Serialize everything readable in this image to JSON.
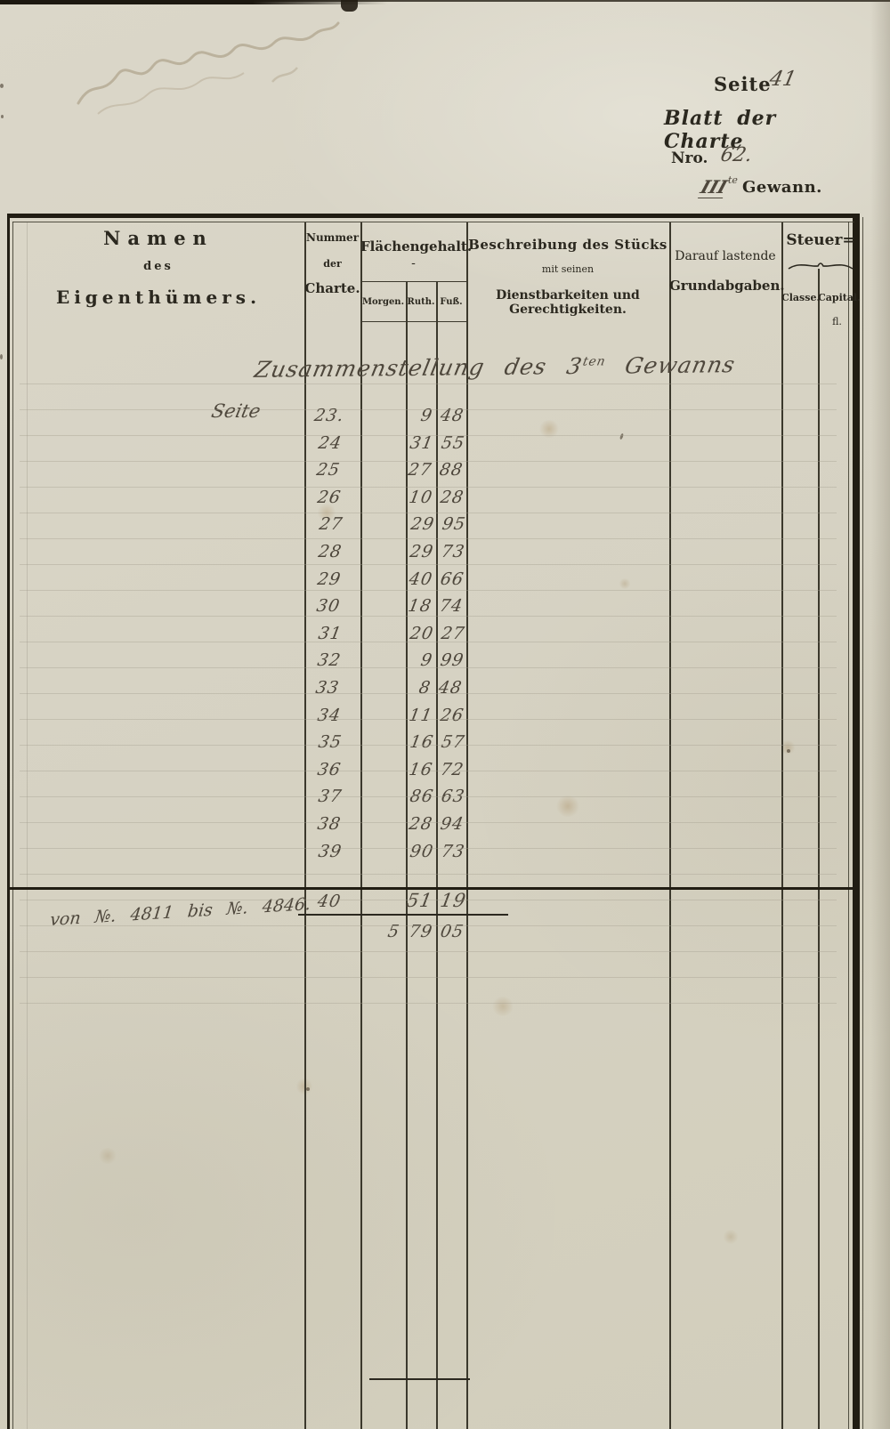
{
  "page_header": {
    "seite_label": "Seite",
    "seite_value": "41",
    "blatt_title": "Blatt der Charte",
    "nro_label": "Nro.",
    "nro_value": "62.",
    "gewann_value": "III",
    "gewann_sup": "te",
    "gewann_label": "Gewann."
  },
  "table_header": {
    "namen_line1": "Namen",
    "namen_line2": "des",
    "namen_line3": "Eigenthümers.",
    "nummer_line1": "Nummer",
    "nummer_line2": "der",
    "nummer_line3": "Charte.",
    "flaeche_title": "Flächengehalt.",
    "flaeche_dash": "-",
    "sub_morgen": "Morgen.",
    "sub_ruth": "Ruth.",
    "sub_fuss": "Fuß.",
    "beschr_line1": "Beschreibung des Stücks",
    "beschr_line2": "mit seinen",
    "beschr_line3": "Dienstbarkeiten und Gerechtigkeiten.",
    "darauf_line1": "Darauf lastende",
    "darauf_line2": "Grundabgaben.",
    "steuer_title": "Steuer=",
    "steuer_classe": "Classe.",
    "steuer_capital": "Capital.",
    "steuer_unit": "fl."
  },
  "entries": {
    "title_a": "Zusammenstellung des 3",
    "title_sup": "ten",
    "title_b": "Gewanns",
    "owner_word": "Seite",
    "rows": [
      {
        "nr": "23.",
        "ruth": "9",
        "fuss": "48"
      },
      {
        "nr": "24",
        "ruth": "31",
        "fuss": "55"
      },
      {
        "nr": "25",
        "ruth": "27",
        "fuss": "88"
      },
      {
        "nr": "26",
        "ruth": "10",
        "fuss": "28"
      },
      {
        "nr": "27",
        "ruth": "29",
        "fuss": "95"
      },
      {
        "nr": "28",
        "ruth": "29",
        "fuss": "73"
      },
      {
        "nr": "29",
        "ruth": "40",
        "fuss": "66"
      },
      {
        "nr": "30",
        "ruth": "18",
        "fuss": "74"
      },
      {
        "nr": "31",
        "ruth": "20",
        "fuss": "27"
      },
      {
        "nr": "32",
        "ruth": "9",
        "fuss": "99"
      },
      {
        "nr": "33",
        "ruth": "8",
        "fuss": "48"
      },
      {
        "nr": "34",
        "ruth": "11",
        "fuss": "26"
      },
      {
        "nr": "35",
        "ruth": "16",
        "fuss": "57"
      },
      {
        "nr": "36",
        "ruth": "16",
        "fuss": "72"
      },
      {
        "nr": "37",
        "ruth": "86",
        "fuss": "63"
      },
      {
        "nr": "38",
        "ruth": "28",
        "fuss": "94"
      },
      {
        "nr": "39",
        "ruth": "90",
        "fuss": "73"
      }
    ],
    "row_40": {
      "nr": "40",
      "ruth": "51",
      "fuss": "19"
    },
    "total_row": {
      "morgen": "5",
      "ruth": "79",
      "fuss": "05"
    },
    "range_note": "von №. 4811  bis №. 4846."
  }
}
